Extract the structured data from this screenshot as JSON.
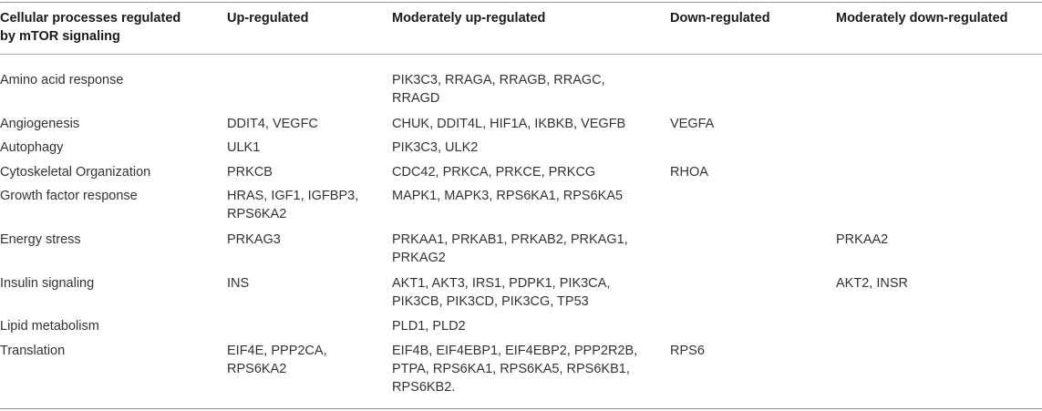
{
  "header": {
    "col0_line1": "Cellular processes regulated",
    "col0_line2": "by mTOR signaling",
    "col1": "Up-regulated",
    "col2": "Moderately up-regulated",
    "col3": "Down-regulated",
    "col4": "Moderately down-regulated"
  },
  "rows": [
    {
      "process": [
        "Amino acid response"
      ],
      "up": [],
      "mod_up": [
        "PIK3C3, RRAGA, RRAGB, RRAGC,",
        "RRAGD"
      ],
      "down": [],
      "mod_down": []
    },
    {
      "process": [
        "Angiogenesis"
      ],
      "up": [
        "DDIT4, VEGFC"
      ],
      "mod_up": [
        "CHUK, DDIT4L, HIF1A, IKBKB, VEGFB"
      ],
      "down": [
        "VEGFA"
      ],
      "mod_down": []
    },
    {
      "process": [
        "Autophagy"
      ],
      "up": [
        "ULK1"
      ],
      "mod_up": [
        "PIK3C3, ULK2"
      ],
      "down": [],
      "mod_down": []
    },
    {
      "process": [
        "Cytoskeletal Organization"
      ],
      "up": [
        "PRKCB"
      ],
      "mod_up": [
        "CDC42, PRKCA, PRKCE, PRKCG"
      ],
      "down": [
        "RHOA"
      ],
      "mod_down": []
    },
    {
      "process": [
        "Growth factor response"
      ],
      "up": [
        "HRAS, IGF1, IGFBP3,",
        "RPS6KA2"
      ],
      "mod_up": [
        "MAPK1, MAPK3, RPS6KA1, RPS6KA5"
      ],
      "down": [],
      "mod_down": []
    },
    {
      "process": [
        "Energy stress"
      ],
      "up": [
        "PRKAG3"
      ],
      "mod_up": [
        "PRKAA1, PRKAB1, PRKAB2, PRKAG1,",
        "PRKAG2"
      ],
      "down": [],
      "mod_down": [
        "PRKAA2"
      ]
    },
    {
      "process": [
        "Insulin signaling"
      ],
      "up": [
        "INS"
      ],
      "mod_up": [
        "AKT1, AKT3, IRS1, PDPK1, PIK3CA,",
        "PIK3CB, PIK3CD, PIK3CG, TP53"
      ],
      "down": [],
      "mod_down": [
        "AKT2, INSR"
      ]
    },
    {
      "process": [
        "Lipid metabolism"
      ],
      "up": [],
      "mod_up": [
        "PLD1, PLD2"
      ],
      "down": [],
      "mod_down": []
    },
    {
      "process": [
        "Translation"
      ],
      "up": [
        "EIF4E, PPP2CA,",
        "RPS6KA2"
      ],
      "mod_up": [
        "EIF4B, EIF4EBP1, EIF4EBP2, PPP2R2B,",
        "PTPA, RPS6KA1, RPS6KA5, RPS6KB1,",
        "RPS6KB2."
      ],
      "down": [
        "RPS6"
      ],
      "mod_down": []
    }
  ]
}
